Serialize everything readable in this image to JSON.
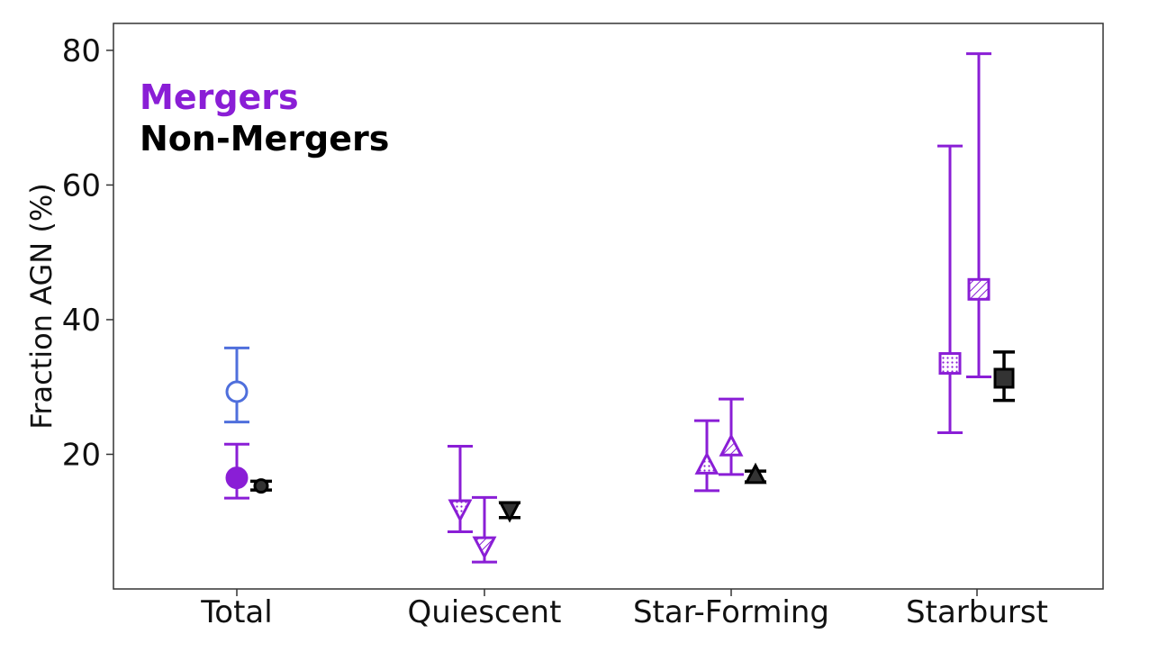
{
  "chart_data": {
    "type": "scatter",
    "title": "",
    "xlabel": "",
    "ylabel": "Fraction AGN (%)",
    "categories": [
      "Total",
      "Quiescent",
      "Star-Forming",
      "Starburst"
    ],
    "ylim": [
      0,
      84
    ],
    "yticks": [
      20,
      40,
      60,
      80
    ],
    "grid": false,
    "legend_placement": "top-left",
    "legend": [
      {
        "label": "Mergers",
        "color": "#8a1ed6"
      },
      {
        "label": "Non-Mergers",
        "color": "#000000"
      }
    ],
    "series": [
      {
        "group": "Mergers",
        "color": "#8a1ed6",
        "points": [
          {
            "category": "Total",
            "y": 16.5,
            "err_low": 13.5,
            "err_high": 21.5,
            "marker": "circle",
            "fill": "solid"
          },
          {
            "category": "Total",
            "y": 29.3,
            "err_low": 24.8,
            "err_high": 35.8,
            "marker": "circle",
            "fill": "hollow",
            "color": "#4f6fdc"
          },
          {
            "category": "Quiescent",
            "y": 12.0,
            "err_low": 8.5,
            "err_high": 21.2,
            "marker": "triangle-down",
            "fill": "dotted"
          },
          {
            "category": "Quiescent",
            "y": 6.5,
            "err_low": 4.0,
            "err_high": 13.6,
            "marker": "triangle-down",
            "fill": "hatched"
          },
          {
            "category": "Star-Forming",
            "y": 18.3,
            "err_low": 14.6,
            "err_high": 25.0,
            "marker": "triangle-up",
            "fill": "dotted"
          },
          {
            "category": "Star-Forming",
            "y": 21.0,
            "err_low": 17.0,
            "err_high": 28.2,
            "marker": "triangle-up",
            "fill": "hatched"
          },
          {
            "category": "Starburst",
            "y": 33.5,
            "err_low": 23.2,
            "err_high": 65.8,
            "marker": "square",
            "fill": "dotted"
          },
          {
            "category": "Starburst",
            "y": 44.5,
            "err_low": 31.5,
            "err_high": 79.5,
            "marker": "square",
            "fill": "hatched"
          }
        ]
      },
      {
        "group": "Non-Mergers",
        "color": "#000000",
        "points": [
          {
            "category": "Total",
            "y": 15.3,
            "err_low": 14.7,
            "err_high": 16.0,
            "marker": "circle",
            "fill": "solid"
          },
          {
            "category": "Quiescent",
            "y": 11.8,
            "err_low": 10.6,
            "err_high": 12.8,
            "marker": "triangle-down",
            "fill": "solid"
          },
          {
            "category": "Star-Forming",
            "y": 16.8,
            "err_low": 15.9,
            "err_high": 17.5,
            "marker": "triangle-up",
            "fill": "solid"
          },
          {
            "category": "Starburst",
            "y": 31.3,
            "err_low": 28.0,
            "err_high": 35.2,
            "marker": "square",
            "fill": "solid"
          }
        ]
      }
    ]
  }
}
